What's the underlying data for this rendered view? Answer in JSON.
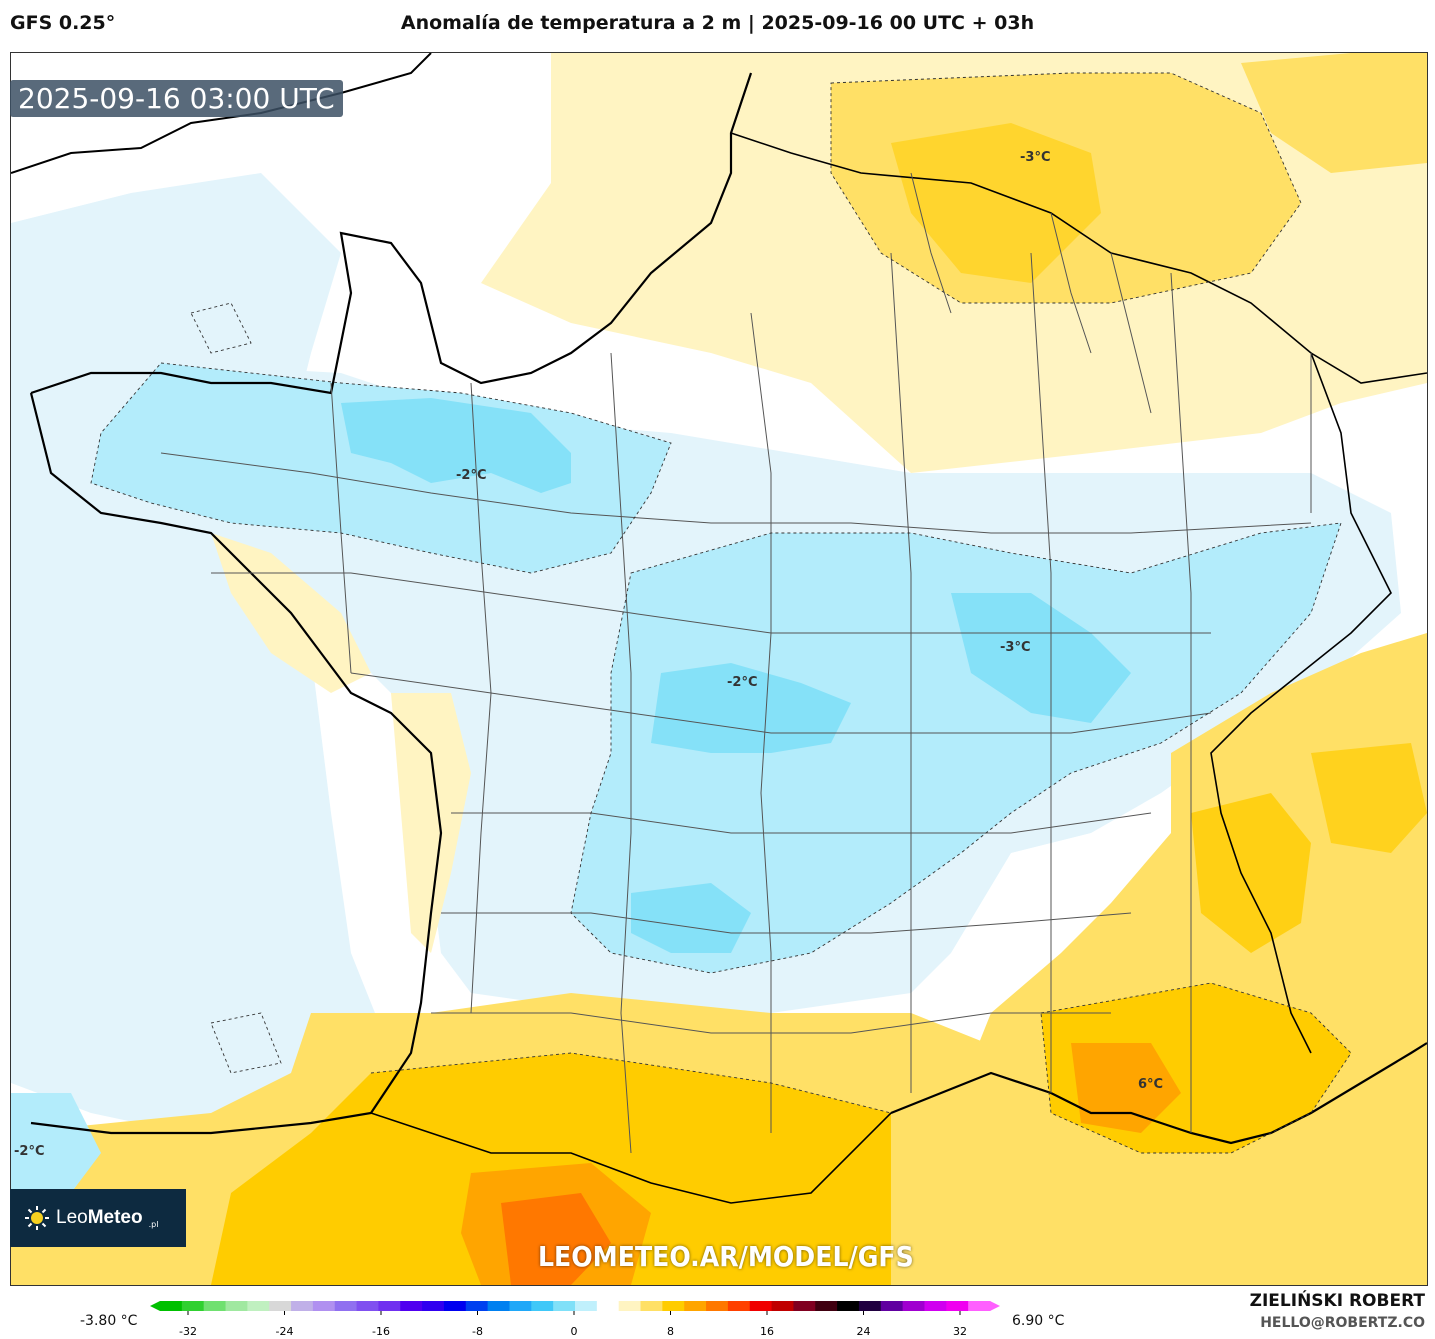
{
  "header": {
    "model": "GFS 0.25°",
    "title": "Anomalía de temperatura a 2 m | 2025-09-16 00 UTC + 03h"
  },
  "map": {
    "valid_time": "2025-09-16 03:00 UTC",
    "labels": [
      "-3°C",
      "-2°C",
      "-2°C",
      "-3°C",
      "6°C",
      "-2°C"
    ],
    "watermark": "LEOMETEO.AR/MODEL/GFS",
    "colors": {
      "sea": "#ffffff",
      "neg_light": "#e3f4fb",
      "neg_mid": "#b3ecfb",
      "neg_strong": "#66dbf7",
      "pos_light": "#fff4c2",
      "pos_mid": "#ffe066",
      "pos_strong": "#ffcc00",
      "pos_hot": "#ffa500",
      "pos_hotter": "#ff7800"
    }
  },
  "logo": {
    "brand_light": "Leo",
    "brand_bold": "Meteo",
    "suffix": ".pl"
  },
  "colorbar": {
    "min_label": "-3.80 °C",
    "max_label": "6.90 °C",
    "ticks": [
      "-32",
      "-24",
      "-16",
      "-8",
      "0",
      "8",
      "16",
      "24",
      "32"
    ],
    "colors": [
      "#00c000",
      "#30d030",
      "#70e070",
      "#a0e8a0",
      "#c0f0c0",
      "#d8d8d8",
      "#c0b0e8",
      "#b090f0",
      "#9070f0",
      "#8050f0",
      "#7030f0",
      "#5000f0",
      "#3000f0",
      "#0000f0",
      "#0040f0",
      "#0080f0",
      "#20a8f8",
      "#40c8f8",
      "#80e0f8",
      "#c0f0fc",
      "#ffffff",
      "#fff4c2",
      "#ffe066",
      "#ffcc00",
      "#ffa500",
      "#ff7800",
      "#ff4000",
      "#f00000",
      "#c00000",
      "#800020",
      "#400010",
      "#000000",
      "#200040",
      "#6000a0",
      "#a000d0",
      "#d000f0",
      "#f000f0",
      "#ff60ff"
    ]
  },
  "credit": {
    "name": "ZIELIŃSKI ROBERT",
    "email": "HELLO@ROBERTZ.CO"
  }
}
